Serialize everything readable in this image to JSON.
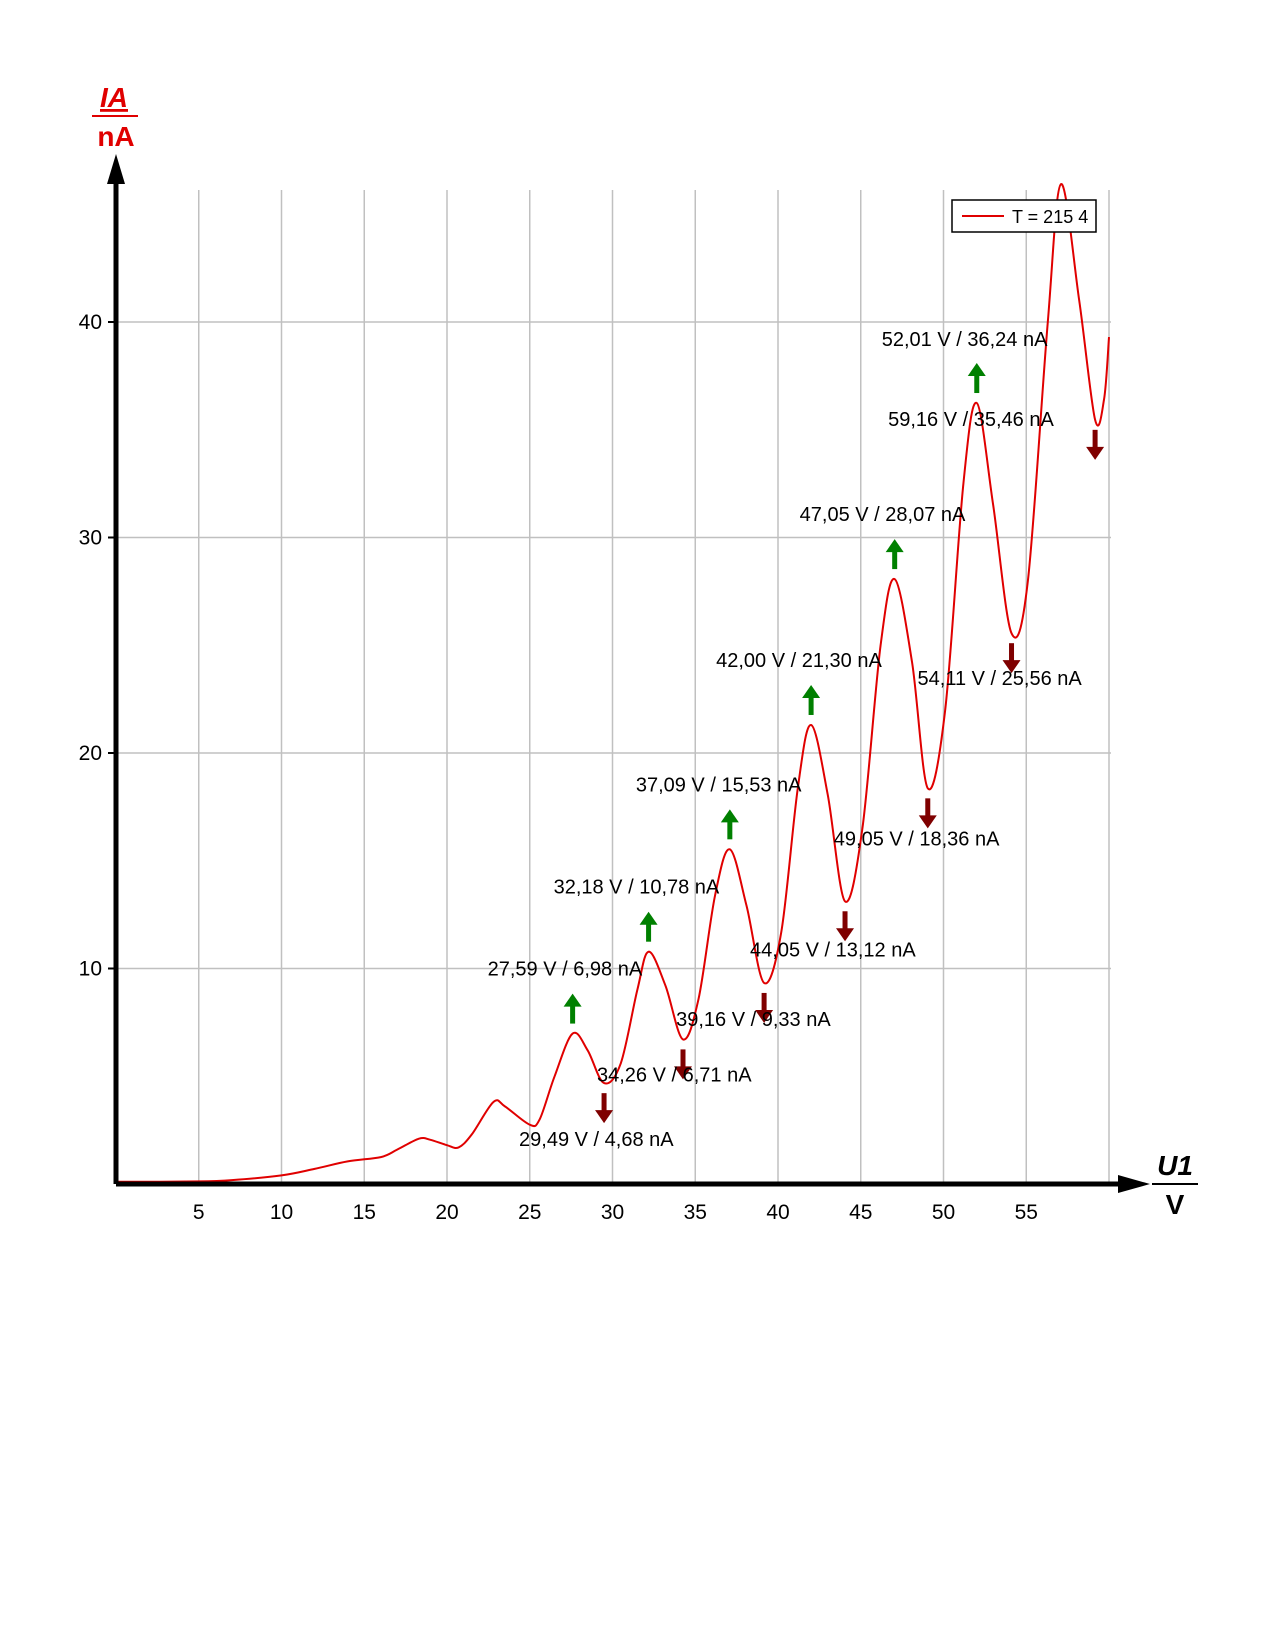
{
  "chart_data": {
    "type": "line",
    "x_axis": {
      "symbol": "U1",
      "unit": "V",
      "ticks": [
        5,
        10,
        15,
        20,
        25,
        30,
        35,
        40,
        45,
        50,
        55
      ],
      "range": [
        0,
        60
      ]
    },
    "y_axis": {
      "symbol": "IA",
      "unit": "nA",
      "ticks": [
        10,
        20,
        30,
        40
      ],
      "range": [
        0,
        46.5
      ]
    },
    "grid": true,
    "legend": {
      "placement": "top-right",
      "label": "T = 215 4"
    },
    "series": [
      {
        "name": "T = 215 4",
        "color": "#e00000",
        "points": [
          [
            0,
            0.1
          ],
          [
            5,
            0.12
          ],
          [
            7,
            0.18
          ],
          [
            10,
            0.4
          ],
          [
            12,
            0.7
          ],
          [
            14,
            1.05
          ],
          [
            16,
            1.25
          ],
          [
            17,
            1.6
          ],
          [
            18.3,
            2.1
          ],
          [
            19,
            2.05
          ],
          [
            20,
            1.8
          ],
          [
            20.7,
            1.7
          ],
          [
            21.5,
            2.3
          ],
          [
            22.8,
            3.8
          ],
          [
            23.5,
            3.6
          ],
          [
            25,
            2.75
          ],
          [
            25.6,
            3.0
          ],
          [
            26.5,
            5.0
          ],
          [
            27.59,
            6.98
          ],
          [
            28.5,
            6.2
          ],
          [
            29.49,
            4.68
          ],
          [
            30.5,
            5.6
          ],
          [
            31.5,
            9.0
          ],
          [
            32.18,
            10.78
          ],
          [
            33.2,
            9.2
          ],
          [
            34.26,
            6.71
          ],
          [
            35.2,
            8.6
          ],
          [
            36.2,
            13.4
          ],
          [
            37.09,
            15.53
          ],
          [
            38.1,
            12.9
          ],
          [
            39.16,
            9.33
          ],
          [
            40.2,
            11.7
          ],
          [
            41.2,
            18.4
          ],
          [
            42.0,
            21.3
          ],
          [
            43.0,
            18.1
          ],
          [
            44.05,
            13.12
          ],
          [
            45.1,
            16.5
          ],
          [
            46.2,
            25.0
          ],
          [
            47.05,
            28.07
          ],
          [
            48.1,
            24.2
          ],
          [
            49.05,
            18.36
          ],
          [
            50.1,
            22.0
          ],
          [
            51.2,
            32.5
          ],
          [
            52.01,
            36.24
          ],
          [
            53.0,
            31.5
          ],
          [
            54.11,
            25.56
          ],
          [
            55.1,
            28.0
          ],
          [
            56.3,
            40.0
          ],
          [
            57.1,
            46.4
          ],
          [
            58.2,
            41.0
          ],
          [
            59.16,
            35.46
          ],
          [
            59.7,
            36.4
          ],
          [
            60,
            39.3
          ]
        ]
      }
    ],
    "annotations": [
      {
        "type": "max",
        "x": 27.59,
        "y": 6.98,
        "label": "27,59 V / 6,98 nA"
      },
      {
        "type": "min",
        "x": 29.49,
        "y": 4.68,
        "label": "29,49 V / 4,68 nA"
      },
      {
        "type": "max",
        "x": 32.18,
        "y": 10.78,
        "label": "32,18 V / 10,78 nA"
      },
      {
        "type": "min",
        "x": 34.26,
        "y": 6.71,
        "label": "34,26 V / 6,71 nA"
      },
      {
        "type": "max",
        "x": 37.09,
        "y": 15.53,
        "label": "37,09 V / 15,53 nA"
      },
      {
        "type": "min",
        "x": 39.16,
        "y": 9.33,
        "label": "39,16 V / 9,33 nA"
      },
      {
        "type": "max",
        "x": 42.0,
        "y": 21.3,
        "label": "42,00 V / 21,30 nA"
      },
      {
        "type": "min",
        "x": 44.05,
        "y": 13.12,
        "label": "44,05 V / 13,12 nA"
      },
      {
        "type": "max",
        "x": 47.05,
        "y": 28.07,
        "label": "47,05 V / 28,07 nA"
      },
      {
        "type": "min",
        "x": 49.05,
        "y": 18.36,
        "label": "49,05 V / 18,36 nA"
      },
      {
        "type": "max",
        "x": 52.01,
        "y": 36.24,
        "label": "52,01 V / 36,24 nA"
      },
      {
        "type": "min",
        "x": 54.11,
        "y": 25.56,
        "label": "54,11 V / 25,56 nA"
      },
      {
        "type": "min",
        "x": 59.16,
        "y": 35.46,
        "label": "59,16 V / 35,46 nA"
      }
    ],
    "colors": {
      "series": "#e00000",
      "max_arrow": "#008000",
      "min_arrow": "#7f0000",
      "ylabel": "#e00000",
      "grid": "#c0c0c0"
    }
  }
}
